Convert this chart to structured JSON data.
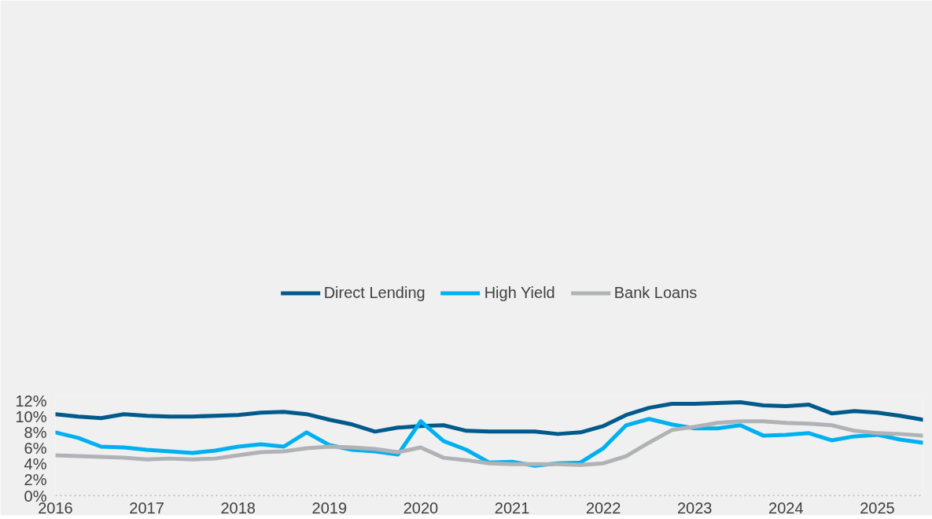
{
  "chart_data": {
    "type": "line",
    "x": [
      2016,
      2016.25,
      2016.5,
      2016.75,
      2017,
      2017.25,
      2017.5,
      2017.75,
      2018,
      2018.25,
      2018.5,
      2018.75,
      2019,
      2019.25,
      2019.5,
      2019.75,
      2020,
      2020.25,
      2020.5,
      2020.75,
      2021,
      2021.25,
      2021.5,
      2021.75,
      2022,
      2022.25,
      2022.5,
      2022.75,
      2023,
      2023.25,
      2023.5,
      2023.75,
      2024,
      2024.25,
      2024.5,
      2024.75,
      2025,
      2025.25,
      2025.5
    ],
    "series": [
      {
        "name": "Direct Lending",
        "color": "#005a8b",
        "values": [
          10.3,
          10.0,
          9.8,
          10.3,
          10.1,
          10.0,
          10.0,
          10.1,
          10.2,
          10.5,
          10.6,
          10.3,
          9.6,
          9.0,
          8.1,
          8.6,
          8.8,
          8.9,
          8.2,
          8.1,
          8.1,
          8.1,
          7.8,
          8.0,
          8.8,
          10.2,
          11.1,
          11.6,
          11.6,
          11.7,
          11.8,
          11.4,
          11.3,
          11.5,
          10.4,
          10.7,
          10.5,
          10.1,
          9.6
        ]
      },
      {
        "name": "High Yield",
        "color": "#00b0f0",
        "values": [
          8.0,
          7.3,
          6.2,
          6.1,
          5.8,
          5.6,
          5.4,
          5.7,
          6.2,
          6.5,
          6.2,
          8.0,
          6.4,
          5.8,
          5.6,
          5.2,
          9.4,
          6.9,
          5.8,
          4.2,
          4.3,
          3.8,
          4.1,
          4.2,
          6.0,
          8.9,
          9.7,
          9.0,
          8.5,
          8.5,
          8.9,
          7.6,
          7.7,
          7.9,
          7.0,
          7.5,
          7.7,
          7.1,
          6.7
        ]
      },
      {
        "name": "Bank Loans",
        "color": "#b1b2b6",
        "values": [
          5.1,
          5.0,
          4.9,
          4.8,
          4.6,
          4.7,
          4.6,
          4.7,
          5.1,
          5.5,
          5.6,
          6.0,
          6.2,
          6.1,
          5.9,
          5.5,
          6.1,
          4.8,
          4.5,
          4.1,
          4.0,
          4.0,
          4.0,
          3.9,
          4.1,
          5.0,
          6.7,
          8.3,
          8.7,
          9.2,
          9.4,
          9.4,
          9.2,
          9.1,
          8.9,
          8.2,
          7.9,
          7.8,
          7.6
        ]
      }
    ],
    "xlim": [
      2016,
      2025.5
    ],
    "xticks": [
      2016,
      2017,
      2018,
      2019,
      2020,
      2021,
      2022,
      2023,
      2024,
      2025
    ],
    "ylim": [
      0,
      12.5
    ],
    "yticks": [
      {
        "value": 0,
        "label": "0%"
      },
      {
        "value": 2,
        "label": "2%"
      },
      {
        "value": 4,
        "label": "4%"
      },
      {
        "value": 6,
        "label": "6%"
      },
      {
        "value": 8,
        "label": "8%"
      },
      {
        "value": 10,
        "label": "10%"
      },
      {
        "value": 12,
        "label": "12%"
      }
    ],
    "ref_lines": [
      {
        "axis": "y",
        "value": 0,
        "label": null,
        "color": "#7f7f7f",
        "line_style": "dotted"
      }
    ],
    "grid": false,
    "legend": "top",
    "marker": "none",
    "line_style": "solid"
  }
}
